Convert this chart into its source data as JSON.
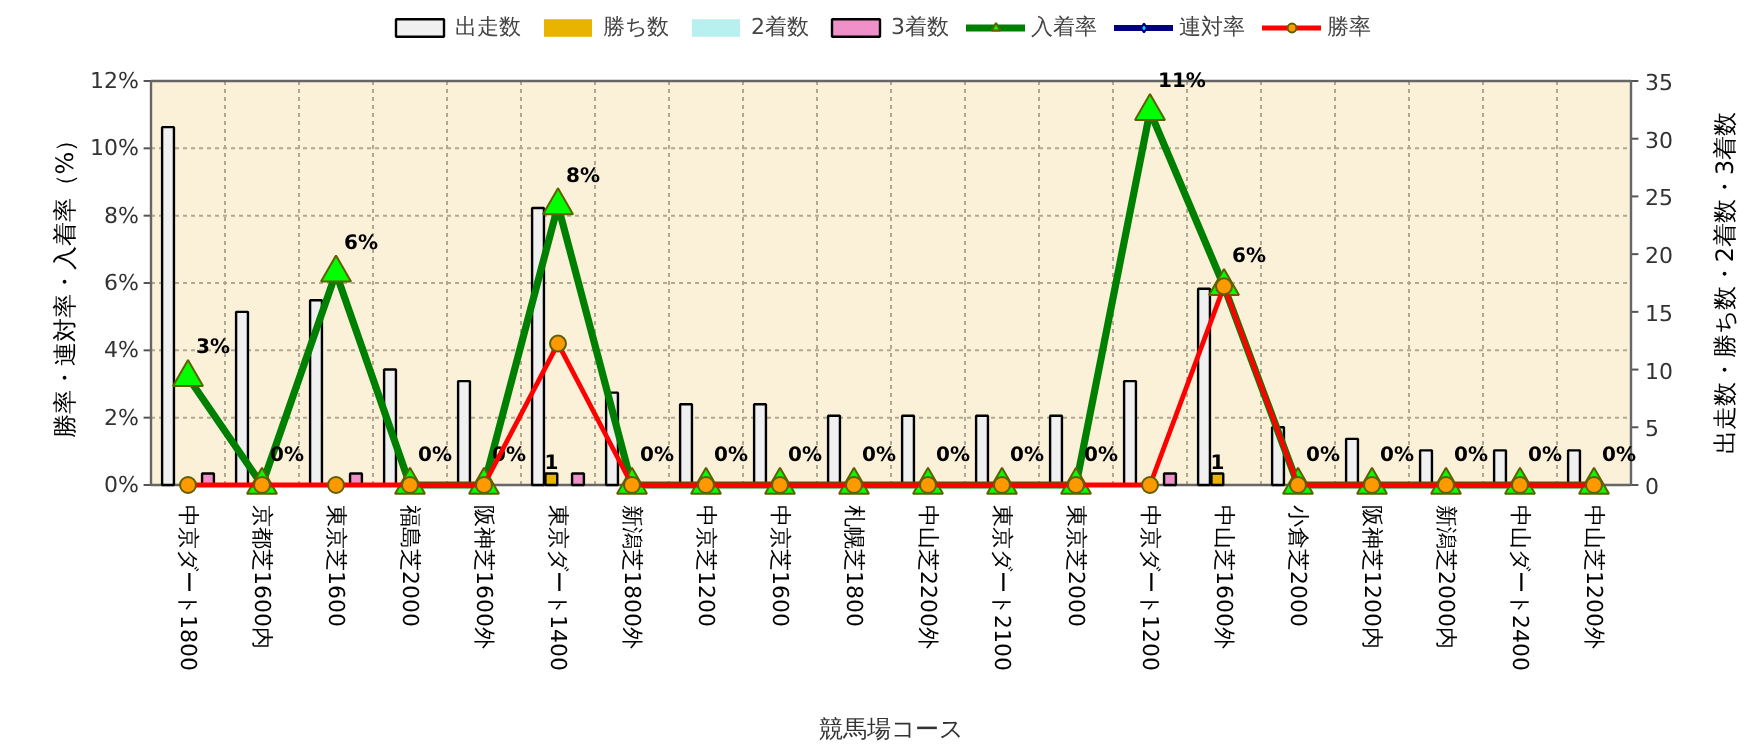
{
  "chart_data": {
    "type": "bar",
    "xlabel": "競馬場コース",
    "ylabel": "勝率・連対率・入着率（%）",
    "y2label": "出走数・勝ち数・2着数・3着数",
    "categories": [
      "中京ダート1800",
      "京都芝1600内",
      "東京芝1600",
      "福島芝2000",
      "阪神芝1600外",
      "東京ダート1400",
      "新潟芝1800外",
      "中京芝1200",
      "中京芝1600",
      "札幌芝1800",
      "中山芝2200外",
      "東京ダート2100",
      "東京芝2000",
      "中京ダート1200",
      "中山芝1600外",
      "小倉芝2000",
      "阪神芝1200内",
      "新潟芝2000内",
      "中山ダート2400",
      "中山芝1200外"
    ],
    "ylim": [
      0,
      12
    ],
    "yticks": [
      {
        "value": 0,
        "label": "0%"
      },
      {
        "value": 2,
        "label": "2%"
      },
      {
        "value": 4,
        "label": "4%"
      },
      {
        "value": 6,
        "label": "6%"
      },
      {
        "value": 8,
        "label": "8%"
      },
      {
        "value": 10,
        "label": "10%"
      },
      {
        "value": 12,
        "label": "12%"
      }
    ],
    "y2lim": [
      0,
      35
    ],
    "y2ticks": [
      0,
      5,
      10,
      15,
      20,
      25,
      30,
      35
    ],
    "grid": true,
    "legend": "top",
    "series": [
      {
        "name": "出走数",
        "axis": "y2",
        "color": "#f0f0f0",
        "values": [
          31,
          15,
          16,
          10,
          9,
          24,
          8,
          7,
          7,
          6,
          6,
          6,
          6,
          9,
          17,
          5,
          4,
          3,
          3,
          3
        ]
      },
      {
        "name": "勝ち数",
        "axis": "y2",
        "color": "#e8b400",
        "values": [
          0,
          0,
          0,
          0,
          0,
          1,
          0,
          0,
          0,
          0,
          0,
          0,
          0,
          0,
          1,
          0,
          0,
          0,
          0,
          0
        ],
        "value_labels": [
          null,
          null,
          null,
          null,
          null,
          "1",
          null,
          null,
          null,
          null,
          null,
          null,
          null,
          null,
          "1",
          null,
          null,
          null,
          null,
          null
        ]
      },
      {
        "name": "2着数",
        "axis": "y2",
        "color": "#b8f0f0",
        "values": [
          0,
          0,
          0,
          0,
          0,
          0,
          0,
          0,
          0,
          0,
          0,
          0,
          0,
          0,
          0,
          0,
          0,
          0,
          0,
          0
        ]
      },
      {
        "name": "3着数",
        "axis": "y2",
        "color": "#f090c8",
        "values": [
          1,
          0,
          1,
          0,
          0,
          1,
          0,
          0,
          0,
          0,
          0,
          0,
          0,
          1,
          0,
          0,
          0,
          0,
          0,
          0
        ]
      },
      {
        "name": "入着率",
        "type": "line",
        "color": "#008000",
        "marker": "triangle",
        "colors": [
          "#00ff00",
          "#00ff00",
          "#00ff00",
          "#00ff00",
          "#00ff00",
          "#00ff00",
          "#00ff00",
          "#00ff00",
          "#00ff00",
          "#00ff00",
          "#00ff00",
          "#00ff00",
          "#00ff00",
          "#00ff00",
          "#00ff00",
          "#00ff00",
          "#00ff00",
          "#00ff00",
          "#00ff00",
          "#00ff00"
        ],
        "values": [
          3.2,
          0,
          6.3,
          0,
          0,
          8.3,
          0,
          0,
          0,
          0,
          0,
          0,
          0,
          11.1,
          5.9,
          0,
          0,
          0,
          0,
          0
        ],
        "value_labels": [
          "3%",
          "0%",
          "6%",
          "0%",
          "0%",
          "8%",
          "0%",
          "0%",
          "0%",
          "0%",
          "0%",
          "0%",
          "0%",
          "11%",
          "6%",
          "0%",
          "0%",
          "0%",
          "0%",
          "0%"
        ]
      },
      {
        "name": "連対率",
        "type": "line",
        "color": "#000080",
        "marker": "diamond",
        "colors": [
          "#00e0ff",
          "#00e0ff",
          "#00e0ff",
          "#00e0ff",
          "#00e0ff",
          "#00e0ff",
          "#00e0ff",
          "#00e0ff",
          "#00e0ff",
          "#00e0ff",
          "#00e0ff",
          "#00e0ff",
          "#00e0ff",
          "#00e0ff",
          "#00e0ff",
          "#00e0ff",
          "#00e0ff",
          "#00e0ff",
          "#00e0ff",
          "#00e0ff"
        ],
        "values": [
          null,
          null,
          null,
          null,
          null,
          null,
          null,
          null,
          null,
          null,
          null,
          null,
          null,
          null,
          null,
          null,
          null,
          null,
          null,
          null
        ]
      },
      {
        "name": "勝率",
        "type": "line",
        "color": "#ff0000",
        "marker": "circle",
        "colors": [
          "#ff9900",
          "#ff9900",
          "#ff9900",
          "#ff9900",
          "#ff9900",
          "#ff9900",
          "#ff9900",
          "#ff9900",
          "#ff9900",
          "#ff9900",
          "#ff9900",
          "#ff9900",
          "#ff9900",
          "#ff9900",
          "#ff9900",
          "#ff9900",
          "#ff9900",
          "#ff9900",
          "#ff9900",
          "#ff9900"
        ],
        "values": [
          0,
          0,
          0,
          0,
          0,
          4.2,
          0,
          0,
          0,
          0,
          0,
          0,
          0,
          0,
          5.9,
          0,
          0,
          0,
          0,
          0
        ]
      }
    ]
  }
}
